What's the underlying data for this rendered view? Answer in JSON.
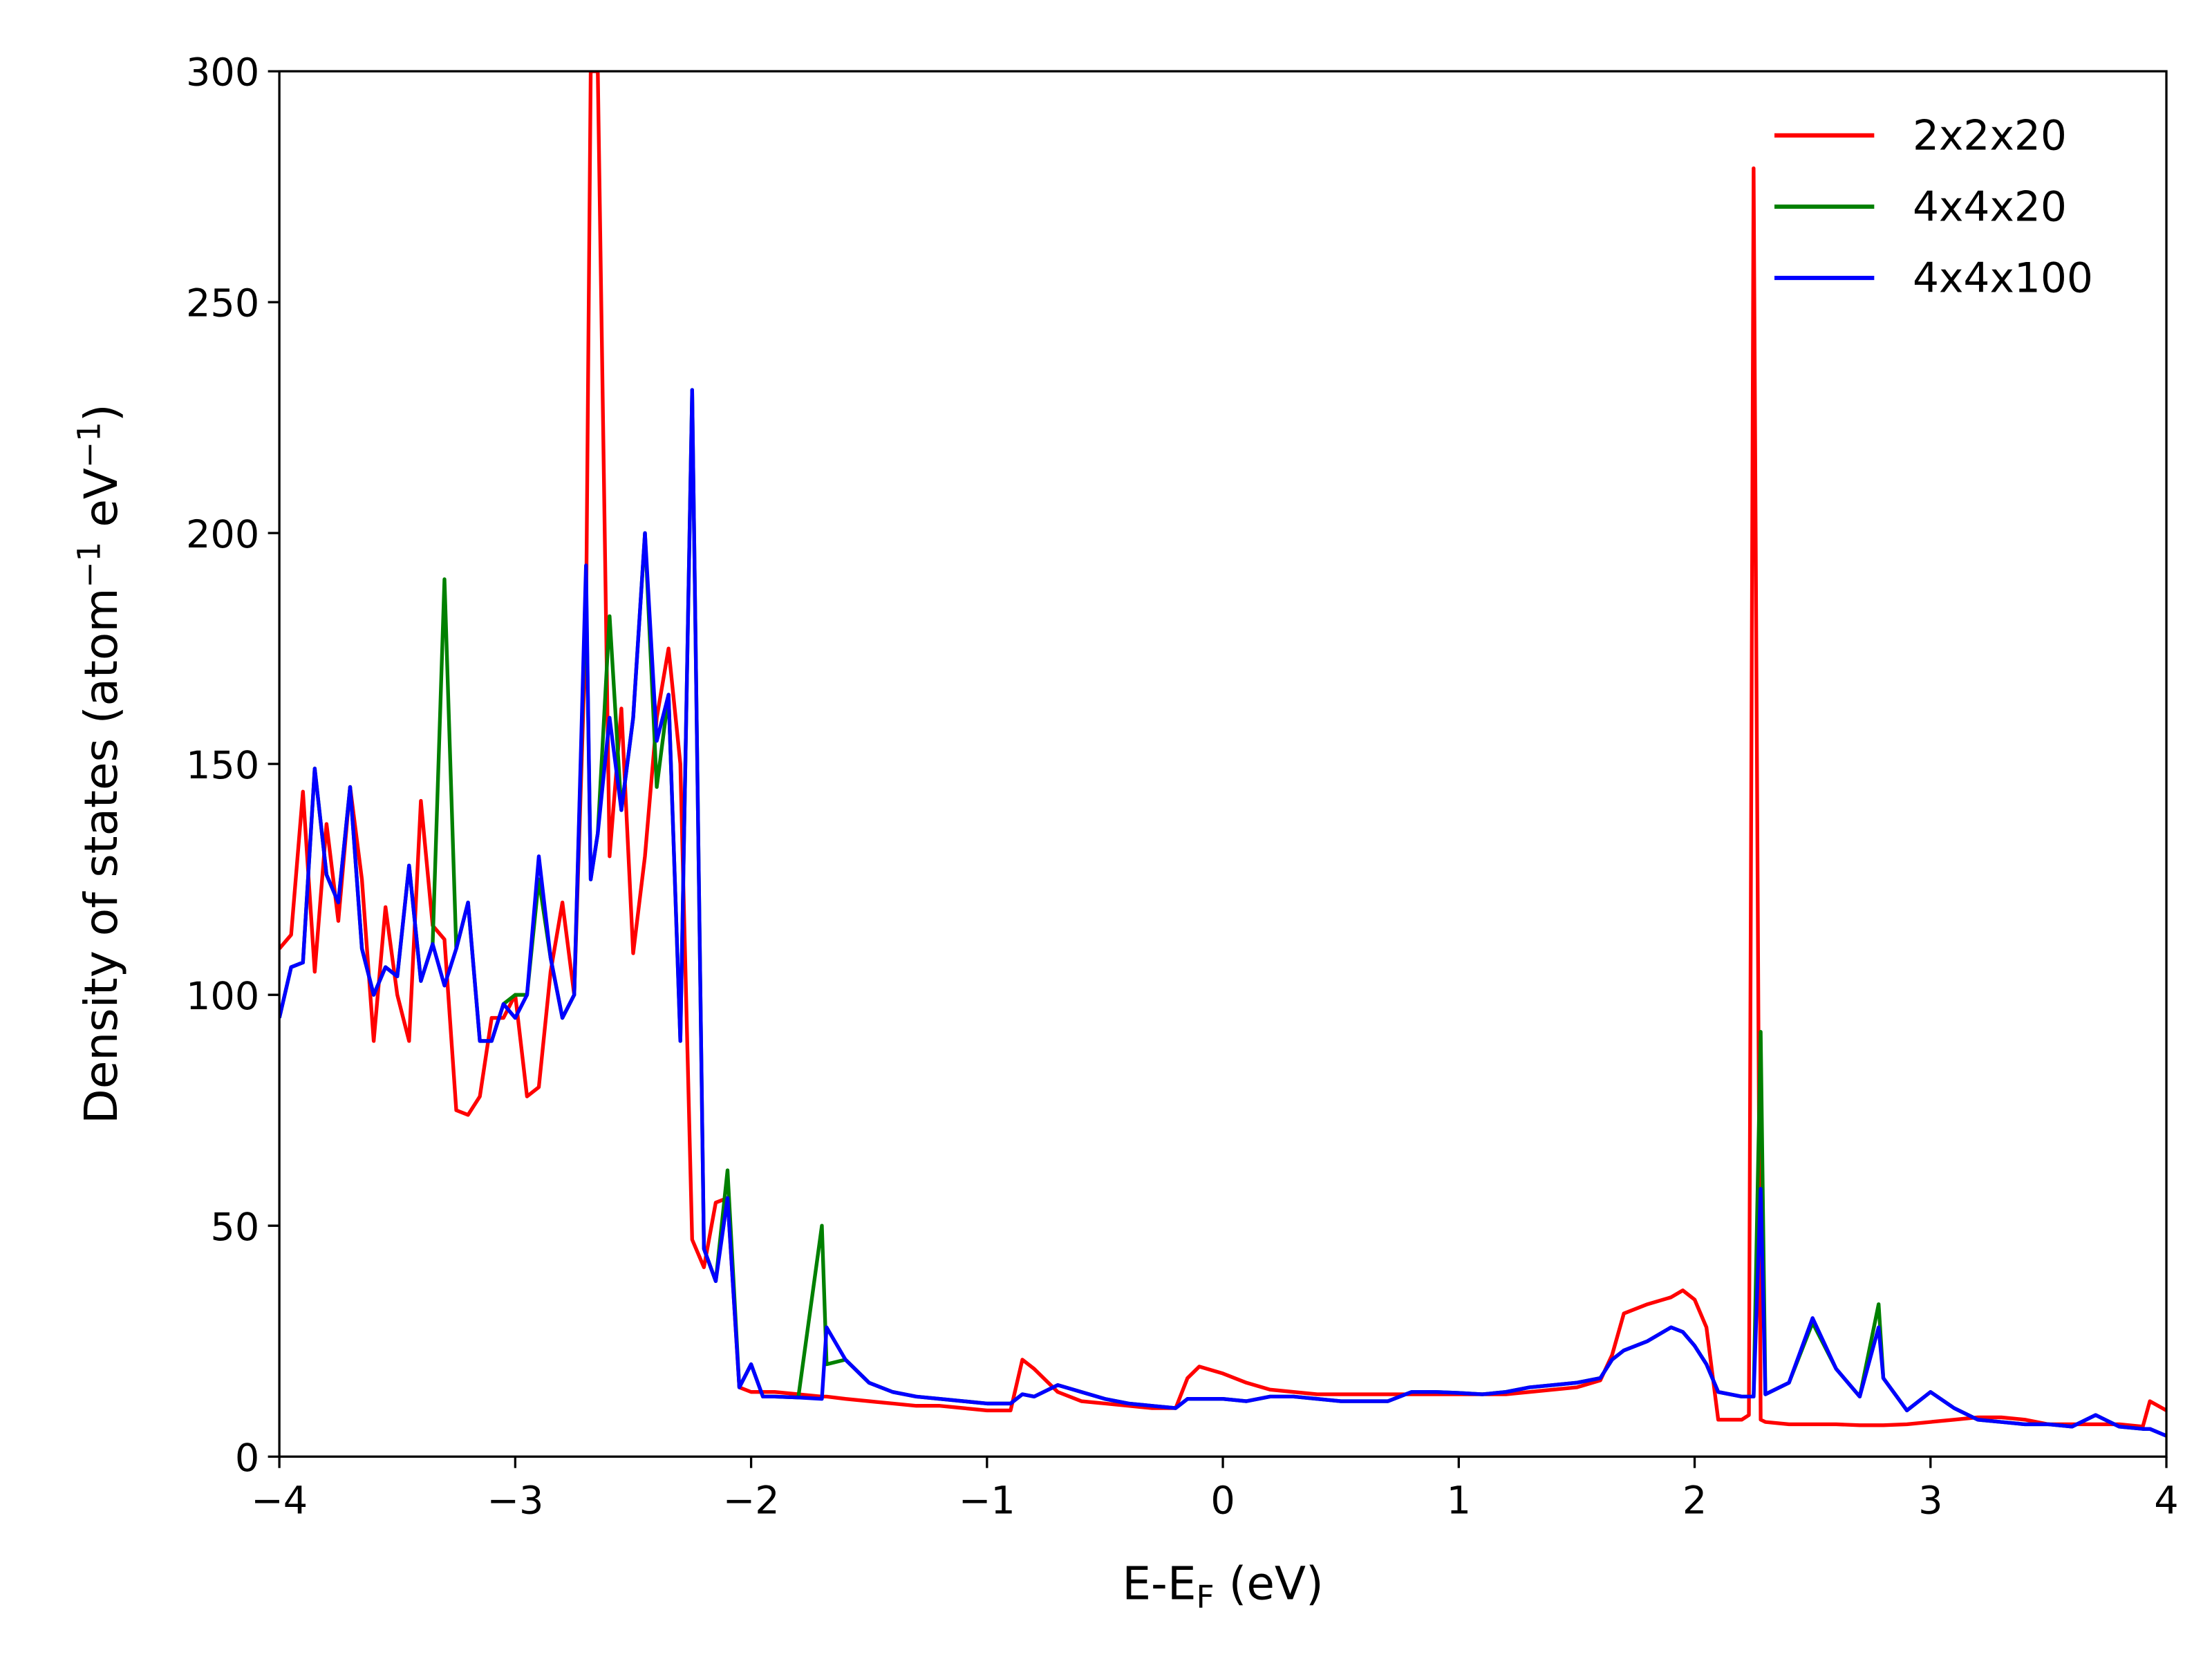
{
  "chart_data": {
    "type": "line",
    "xlabel": [
      "E-E",
      "F",
      " (eV)"
    ],
    "ylabel": [
      "Density of states (atom",
      "−1",
      " eV",
      "−1",
      ")"
    ],
    "x": [
      -4,
      -3.95,
      -3.9,
      -3.85,
      -3.8,
      -3.75,
      -3.7,
      -3.65,
      -3.6,
      -3.55,
      -3.5,
      -3.45,
      -3.4,
      -3.35,
      -3.3,
      -3.25,
      -3.2,
      -3.15,
      -3.1,
      -3.05,
      -3.0,
      -2.95,
      -2.9,
      -2.85,
      -2.8,
      -2.75,
      -2.7,
      -2.68,
      -2.65,
      -2.6,
      -2.55,
      -2.5,
      -2.45,
      -2.4,
      -2.35,
      -2.3,
      -2.25,
      -2.2,
      -2.15,
      -2.1,
      -2.05,
      -2.0,
      -1.95,
      -1.9,
      -1.8,
      -1.7,
      -1.68,
      -1.6,
      -1.5,
      -1.4,
      -1.3,
      -1.2,
      -1.1,
      -1.0,
      -0.9,
      -0.85,
      -0.8,
      -0.7,
      -0.6,
      -0.5,
      -0.4,
      -0.3,
      -0.2,
      -0.15,
      -0.1,
      0,
      0.1,
      0.2,
      0.3,
      0.4,
      0.5,
      0.6,
      0.7,
      0.8,
      0.9,
      1.0,
      1.1,
      1.2,
      1.3,
      1.4,
      1.5,
      1.6,
      1.65,
      1.7,
      1.8,
      1.9,
      1.95,
      2.0,
      2.05,
      2.1,
      2.2,
      2.23,
      2.25,
      2.28,
      2.3,
      2.4,
      2.5,
      2.6,
      2.7,
      2.78,
      2.8,
      2.9,
      3.0,
      3.1,
      3.2,
      3.3,
      3.4,
      3.5,
      3.6,
      3.7,
      3.8,
      3.9,
      3.93,
      4.0
    ],
    "series": [
      {
        "name": "2x2x20",
        "color": "#ff0000",
        "values": [
          110,
          113,
          144,
          105,
          137,
          116,
          145,
          125,
          90,
          119,
          100,
          90,
          142,
          115,
          112,
          75,
          74,
          78,
          95,
          95,
          100,
          78,
          80,
          105,
          120,
          100,
          180,
          300,
          300,
          130,
          162,
          109,
          130,
          160,
          175,
          150,
          47,
          41,
          55,
          56,
          15,
          14,
          14,
          14,
          13.5,
          13,
          13,
          12.5,
          12,
          11.5,
          11,
          11,
          10.5,
          10,
          10,
          21,
          19,
          14,
          12,
          11.5,
          11,
          10.5,
          10.5,
          17,
          19.5,
          18,
          16,
          14.5,
          14,
          13.5,
          13.5,
          13.5,
          13.5,
          13.5,
          13.5,
          13.5,
          13.5,
          13.5,
          14,
          14.5,
          15,
          16.5,
          22,
          31,
          33,
          34.5,
          36,
          34,
          28,
          8,
          8,
          9,
          279,
          8,
          7.5,
          7,
          7,
          7,
          6.8,
          6.8,
          6.8,
          7,
          7.5,
          8,
          8.5,
          8.5,
          8,
          7,
          7,
          7,
          7,
          6.5,
          12,
          10
        ]
      },
      {
        "name": "4x4x20",
        "color": "#008000",
        "values": [
          95,
          106,
          107,
          149,
          126,
          120,
          145,
          110,
          100,
          106,
          104,
          128,
          103,
          111,
          190,
          110,
          120,
          90,
          90,
          98,
          100,
          100,
          125,
          108,
          95,
          100,
          190,
          125,
          135,
          182,
          140,
          160,
          200,
          145,
          165,
          90,
          231,
          45,
          38,
          62,
          15,
          20,
          13,
          13,
          12.8,
          50,
          20,
          21,
          16,
          14,
          13,
          12.5,
          12,
          11.5,
          11.5,
          13.5,
          13,
          15.5,
          14,
          12.5,
          11.5,
          11,
          10.5,
          12.5,
          12.5,
          12.5,
          12,
          13,
          13,
          12.5,
          12,
          12,
          12,
          14,
          14,
          13.8,
          13.5,
          14,
          15,
          15.5,
          16,
          17,
          21,
          23,
          25,
          28,
          27,
          24,
          20,
          14,
          13,
          13,
          13,
          92,
          13.5,
          16,
          29,
          19,
          13,
          33,
          17,
          10,
          14,
          10.5,
          8,
          7.5,
          7,
          7,
          6.5,
          9,
          6.5,
          6,
          6,
          4.5
        ]
      },
      {
        "name": "4x4x100",
        "color": "#0000ff",
        "values": [
          95,
          106,
          107,
          149,
          126,
          120,
          145,
          110,
          100,
          106,
          104,
          128,
          103,
          111,
          102,
          110,
          120,
          90,
          90,
          98,
          95,
          100,
          130,
          108,
          95,
          100,
          193,
          125,
          135,
          160,
          140,
          160,
          200,
          155,
          165,
          90,
          231,
          45,
          38,
          56,
          15,
          20,
          13,
          13,
          12.8,
          12.5,
          28,
          21,
          16,
          14,
          13,
          12.5,
          12,
          11.5,
          11.5,
          13.5,
          13,
          15.5,
          14,
          12.5,
          11.5,
          11,
          10.5,
          12.5,
          12.5,
          12.5,
          12,
          13,
          13,
          12.5,
          12,
          12,
          12,
          14,
          14,
          13.8,
          13.5,
          14,
          15,
          15.5,
          16,
          17,
          21,
          23,
          25,
          28,
          27,
          24,
          20,
          14,
          13,
          13,
          13,
          58,
          13.5,
          16,
          30,
          19,
          13,
          28,
          17,
          10,
          14,
          10.5,
          8,
          7.5,
          7,
          7,
          6.5,
          9,
          6.5,
          6,
          6,
          4.5
        ]
      }
    ],
    "xlim": [
      -4,
      4
    ],
    "xticks": [
      {
        "value": -4,
        "label": "−4"
      },
      {
        "value": -3,
        "label": "−3"
      },
      {
        "value": -2,
        "label": "−2"
      },
      {
        "value": -1,
        "label": "−1"
      },
      0,
      1,
      2,
      3,
      4
    ],
    "ylim": [
      0,
      300
    ],
    "yticks": [
      0,
      50,
      100,
      150,
      200,
      250,
      300
    ],
    "grid": false,
    "legend": "upper-right"
  }
}
